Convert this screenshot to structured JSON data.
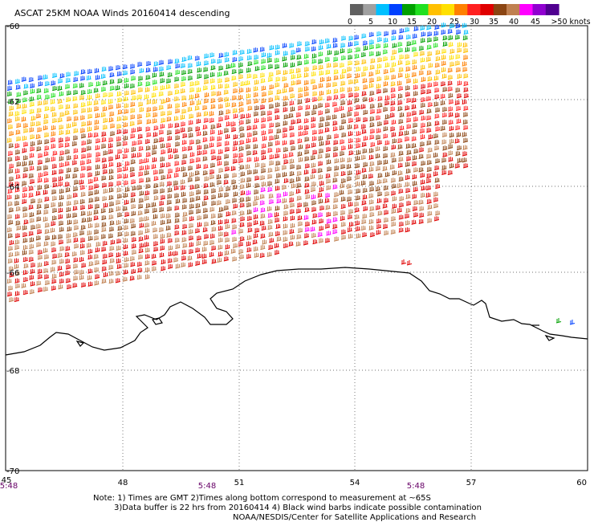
{
  "title": "ASCAT 25KM NOAA Winds 20160414 descending",
  "legend": {
    "labels": [
      "0",
      "5",
      "10",
      "15",
      "20",
      "25",
      "30",
      "35",
      "40",
      "45",
      ">50 knots"
    ],
    "colors": [
      "#606060",
      "#a0a0a0",
      "#00c0ff",
      "#0040ff",
      "#00a000",
      "#20e020",
      "#ffc000",
      "#ffe000",
      "#ff8000",
      "#ff2020",
      "#e00000",
      "#8b4513",
      "#c08050",
      "#ff00ff",
      "#9000d0",
      "#500090"
    ]
  },
  "axes": {
    "lat_labels": [
      "-60",
      "-62",
      "-64",
      "-66",
      "-68",
      "-70"
    ],
    "lon_labels": [
      "45",
      "48",
      "51",
      "54",
      "57",
      "60"
    ]
  },
  "times": [
    "5:48",
    "5:48",
    "5:48"
  ],
  "notes": {
    "line1": "Note: 1) Times are GMT  2)Times along bottom correspond to measurement at ~65S",
    "line2": "3)Data buffer is 22 hrs from 20160414  4) Black wind barbs indicate possible contamination",
    "line3": "NOAA/NESDIS/Center for Satellite Applications and Research"
  }
}
